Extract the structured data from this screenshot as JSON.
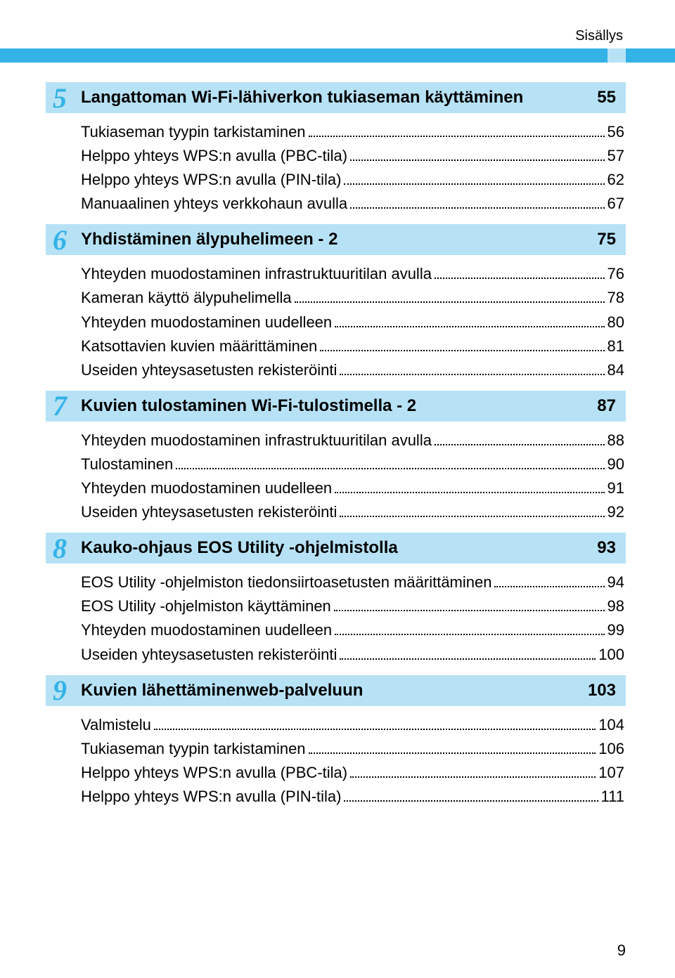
{
  "header_label": "Sisällys",
  "colors": {
    "bar": "#33b2e6",
    "chapter_bg": "#b7e2f6",
    "text": "#000000",
    "page_bg": "#ffffff"
  },
  "page_number": "9",
  "chapters": [
    {
      "num": "5",
      "title": "Langattoman Wi-Fi-lähiverkon tukiaseman käyttäminen",
      "page": "55",
      "entries": [
        {
          "label": "Tukiaseman tyypin tarkistaminen",
          "page": "56"
        },
        {
          "label": "Helppo yhteys WPS:n avulla (PBC-tila)",
          "page": "57"
        },
        {
          "label": "Helppo yhteys WPS:n avulla (PIN-tila)",
          "page": "62"
        },
        {
          "label": "Manuaalinen yhteys verkkohaun avulla",
          "page": "67"
        }
      ]
    },
    {
      "num": "6",
      "title": "Yhdistäminen älypuhelimeen - 2",
      "page": "75",
      "entries": [
        {
          "label": "Yhteyden muodostaminen infrastruktuuritilan avulla",
          "page": "76"
        },
        {
          "label": "Kameran käyttö älypuhelimella",
          "page": "78"
        },
        {
          "label": "Yhteyden muodostaminen uudelleen",
          "page": "80"
        },
        {
          "label": "Katsottavien kuvien määrittäminen",
          "page": "81"
        },
        {
          "label": "Useiden yhteysasetusten rekisteröinti",
          "page": "84"
        }
      ]
    },
    {
      "num": "7",
      "title": "Kuvien tulostaminen Wi-Fi-tulostimella - 2",
      "page": "87",
      "entries": [
        {
          "label": "Yhteyden muodostaminen infrastruktuuritilan avulla",
          "page": "88"
        },
        {
          "label": "Tulostaminen",
          "page": "90"
        },
        {
          "label": "Yhteyden muodostaminen uudelleen",
          "page": "91"
        },
        {
          "label": "Useiden yhteysasetusten rekisteröinti",
          "page": "92"
        }
      ]
    },
    {
      "num": "8",
      "title": "Kauko-ohjaus EOS Utility -ohjelmistolla",
      "page": "93",
      "entries": [
        {
          "label": "EOS Utility -ohjelmiston tiedonsiirtoasetusten määrittäminen",
          "page": "94"
        },
        {
          "label": "EOS Utility -ohjelmiston käyttäminen",
          "page": " 98"
        },
        {
          "label": "Yhteyden muodostaminen uudelleen",
          "page": "99"
        },
        {
          "label": "Useiden yhteysasetusten rekisteröinti",
          "page": "100"
        }
      ]
    },
    {
      "num": "9",
      "title": "Kuvien lähettäminenweb-palveluun",
      "page": "103",
      "entries": [
        {
          "label": "Valmistelu",
          "page": "104"
        },
        {
          "label": "Tukiaseman tyypin tarkistaminen",
          "page": "106"
        },
        {
          "label": "Helppo yhteys WPS:n avulla (PBC-tila)",
          "page": "107"
        },
        {
          "label": "Helppo yhteys WPS:n avulla (PIN-tila)",
          "page": "111"
        }
      ]
    }
  ]
}
